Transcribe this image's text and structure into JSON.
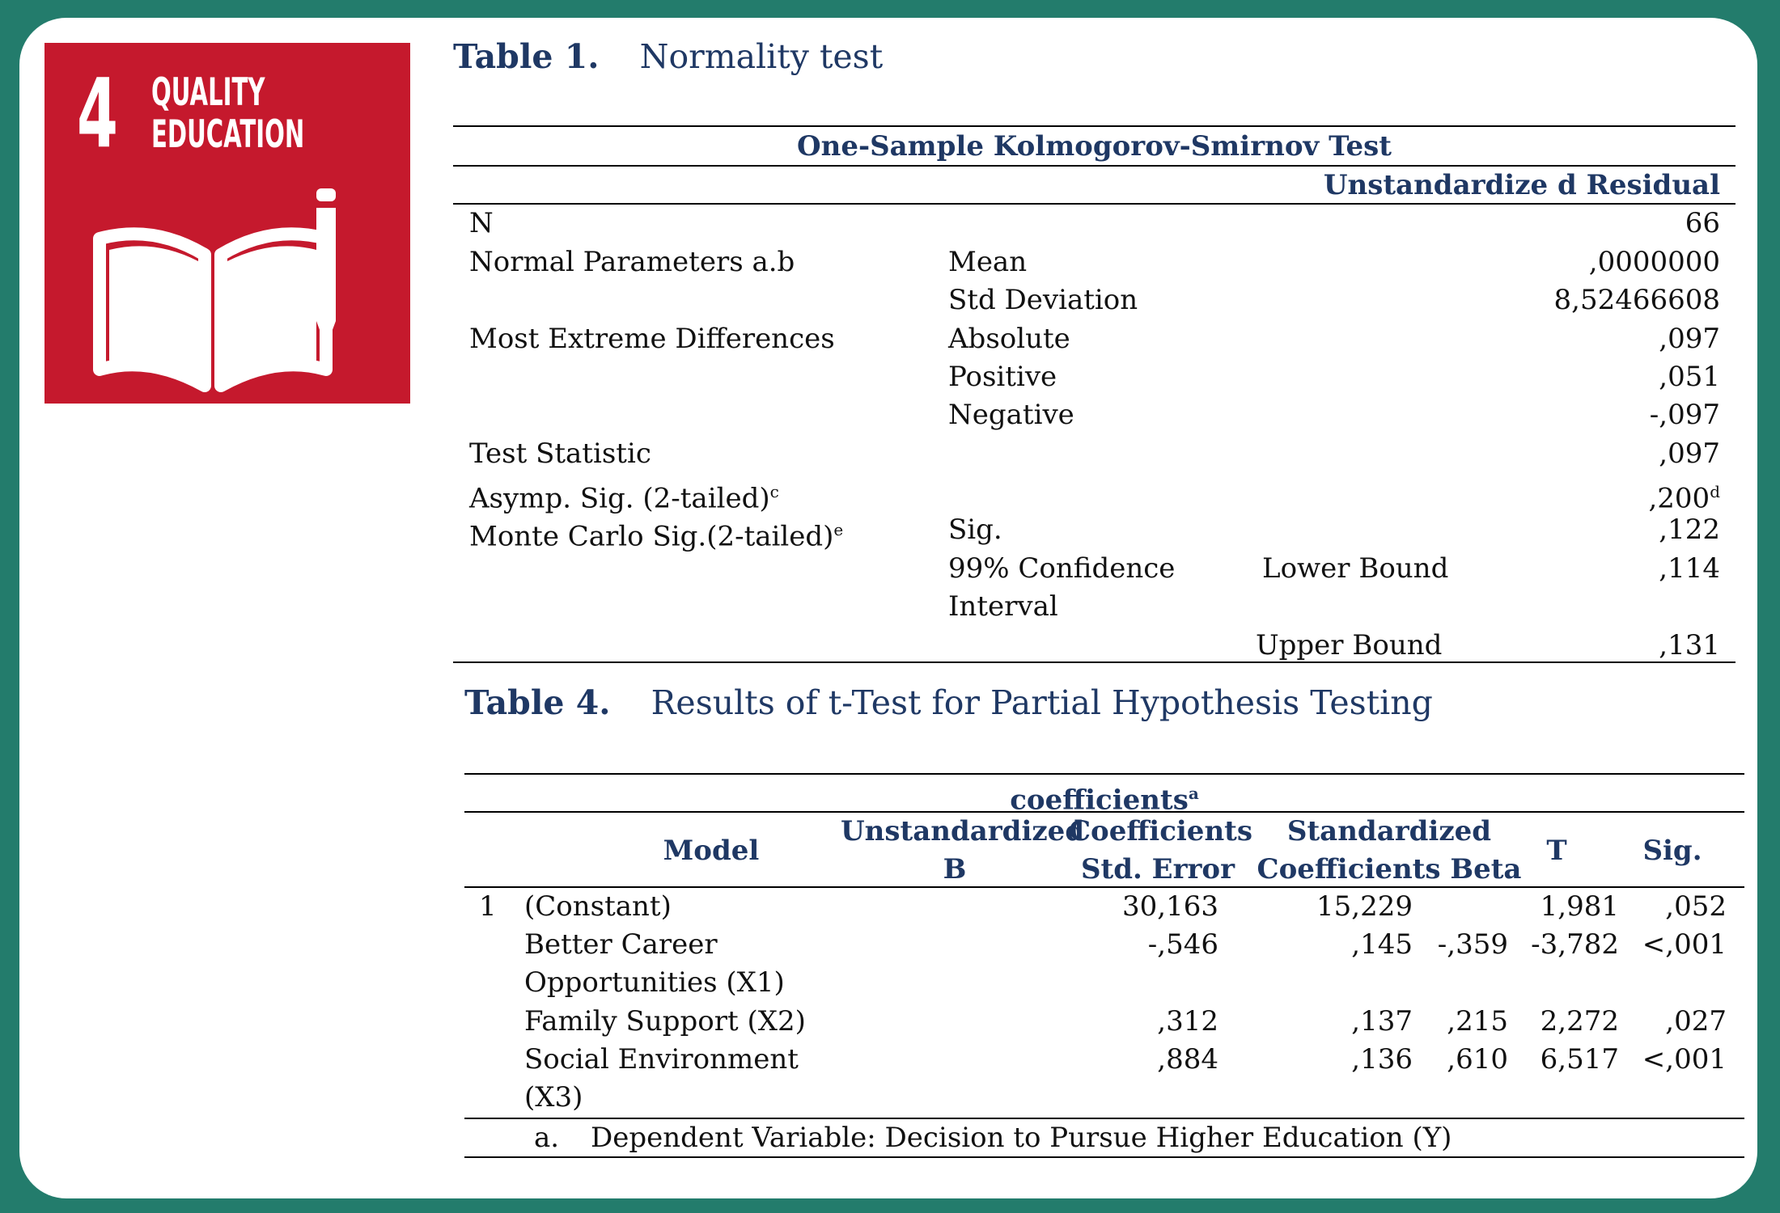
{
  "sdg_logo": {
    "number": "4",
    "title_line1": "QUALITY",
    "title_line2": "EDUCATION",
    "color": "#c5192d",
    "icon": "book-and-pencil-icon"
  },
  "table1": {
    "label": "Table 1.",
    "title": "Normality test",
    "test_name": "One-Sample Kolmogorov-Smirnov Test",
    "column_header": "Unstandardize d Residual",
    "rows": {
      "n": {
        "label": "N",
        "value": "66"
      },
      "mean": {
        "label": "Normal Parameters a.b",
        "sub": "Mean",
        "value": ",0000000"
      },
      "std": {
        "sub": "Std Deviation",
        "value": "8,52466608"
      },
      "absolute": {
        "label": "Most Extreme Differences",
        "sub": "Absolute",
        "value": ",097"
      },
      "positive": {
        "sub": "Positive",
        "value": ",051"
      },
      "negative": {
        "sub": "Negative",
        "value": "-,097"
      },
      "test_stat": {
        "label": "Test Statistic",
        "value": ",097"
      },
      "asymp": {
        "label": "Asymp. Sig. (2-tailed)",
        "label_sup": "c",
        "value": ",200",
        "value_sup": "d"
      },
      "monte": {
        "label": "Monte Carlo Sig.(2-tailed)",
        "label_sup": "e",
        "sub": "Sig.",
        "value": ",122"
      },
      "lower": {
        "sub_line1": "99% Confidence",
        "sub_line2": "Interval",
        "bound": "Lower Bound",
        "value": ",114"
      },
      "upper": {
        "bound": "Upper Bound",
        "value": ",131"
      }
    }
  },
  "table4": {
    "label": "Table 4.",
    "title": "Results of t-Test for Partial Hypothesis Testing",
    "group_header": "coefficients",
    "group_header_sup": "a",
    "headers": {
      "model": "Model",
      "unstd_line1": "Unstandardized",
      "unstd_line2": "B",
      "coef_line1": "Coefficients",
      "coef_line2": "Std. Error",
      "std_line1": "Standardized",
      "std_line2": "Coefficients Beta",
      "t": "T",
      "sig": "Sig."
    },
    "model_number": "1",
    "rows": [
      {
        "name_line1": "(Constant)",
        "name_line2": "",
        "b": "30,163",
        "se": "15,229",
        "beta": "",
        "t": "1,981",
        "sig": ",052"
      },
      {
        "name_line1": "Better Career",
        "name_line2": "Opportunities (X1)",
        "b": "-,546",
        "se": ",145",
        "beta": "-,359",
        "t": "-3,782",
        "sig": "<,001"
      },
      {
        "name_line1": "Family Support (X2)",
        "name_line2": "",
        "b": ",312",
        "se": ",137",
        "beta": ",215",
        "t": "2,272",
        "sig": ",027"
      },
      {
        "name_line1": "Social Environment",
        "name_line2": "(X3)",
        "b": ",884",
        "se": ",136",
        "beta": ",610",
        "t": "6,517",
        "sig": "<,001"
      }
    ],
    "footnote_marker": "a.",
    "footnote": "Dependent Variable: Decision to Pursue Higher Education (Y)"
  }
}
